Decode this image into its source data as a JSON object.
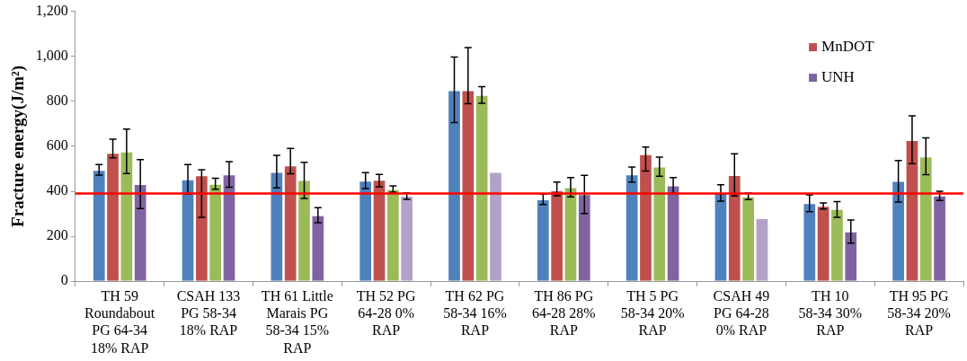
{
  "chart_data": {
    "type": "bar",
    "ylabel": "Fracture energy(J/m²)",
    "categories": [
      "TH 59 Roundabout PG 64-34 18% RAP",
      "CSAH 133 PG 58-34 18% RAP",
      "TH 61 Little Marais PG 58-34 15% RAP",
      "TH 52 PG 64-28 0% RAP",
      "TH 62 PG 58-34 16% RAP",
      "TH 86 PG 64-28 28% RAP",
      "TH 5 PG 58-34 20% RAP",
      "CSAH 49 PG 64-28 0% RAP",
      "TH 10 58-34 30% RAP",
      "TH 95 PG 58-34 20% RAP"
    ],
    "series": [
      {
        "color": "#4f81bd",
        "values": [
          495,
          453,
          486,
          447,
          849,
          364,
          475,
          392,
          347,
          446
        ],
        "errors": [
          [
            472,
            519
          ],
          [
            387,
            519
          ],
          [
            415,
            560
          ],
          [
            412,
            483
          ],
          [
            705,
            997
          ],
          [
            341,
            387
          ],
          [
            441,
            508
          ],
          [
            356,
            429
          ],
          [
            309,
            384
          ],
          [
            352,
            537
          ]
        ]
      },
      {
        "name": "MnDOT",
        "color": "#c0504d",
        "values": [
          571,
          471,
          515,
          451,
          849,
          404,
          565,
          472,
          335,
          628
        ],
        "errors": [
          [
            549,
            632
          ],
          [
            284,
            496
          ],
          [
            478,
            591
          ],
          [
            420,
            475
          ],
          [
            789,
            1039
          ],
          [
            380,
            441
          ],
          [
            490,
            597
          ],
          [
            379,
            567
          ],
          [
            321,
            348
          ],
          [
            523,
            735
          ]
        ]
      },
      {
        "color": "#9bbb59",
        "values": [
          577,
          433,
          450,
          409,
          828,
          418,
          510,
          377,
          321,
          555
        ],
        "errors": [
          [
            479,
            676
          ],
          [
            409,
            458
          ],
          [
            368,
            529
          ],
          [
            396,
            424
          ],
          [
            791,
            865
          ],
          [
            375,
            461
          ],
          [
            467,
            552
          ],
          [
            363,
            392
          ],
          [
            284,
            354
          ],
          [
            474,
            638
          ]
        ]
      },
      {
        "name": "UNH",
        "color": "#8064a2",
        "colors": [
          "#8064a2",
          "#8064a2",
          "#8064a2",
          "#b3a2c7",
          "#b3a2c7",
          "#8064a2",
          "#8064a2",
          "#b3a2c7",
          "#8064a2",
          "#8064a2"
        ],
        "values": [
          432,
          475,
          293,
          380,
          486,
          387,
          426,
          280,
          221,
          381
        ],
        "errors": [
          [
            323,
            541
          ],
          [
            418,
            532
          ],
          [
            260,
            327
          ],
          [
            364,
            393
          ],
          null,
          [
            301,
            471
          ],
          [
            391,
            461
          ],
          null,
          [
            169,
            272
          ],
          [
            359,
            400
          ]
        ]
      }
    ],
    "ylim": [
      0,
      1200
    ],
    "yticks": [
      0,
      200,
      400,
      600,
      800,
      {
        "value": 1000,
        "label": "1,000"
      },
      {
        "value": 1200,
        "label": "1,200"
      }
    ],
    "ref_lines": [
      {
        "axis": "y",
        "value": 390,
        "color": "#ff0000"
      }
    ],
    "grid": false,
    "legend": "top right"
  }
}
